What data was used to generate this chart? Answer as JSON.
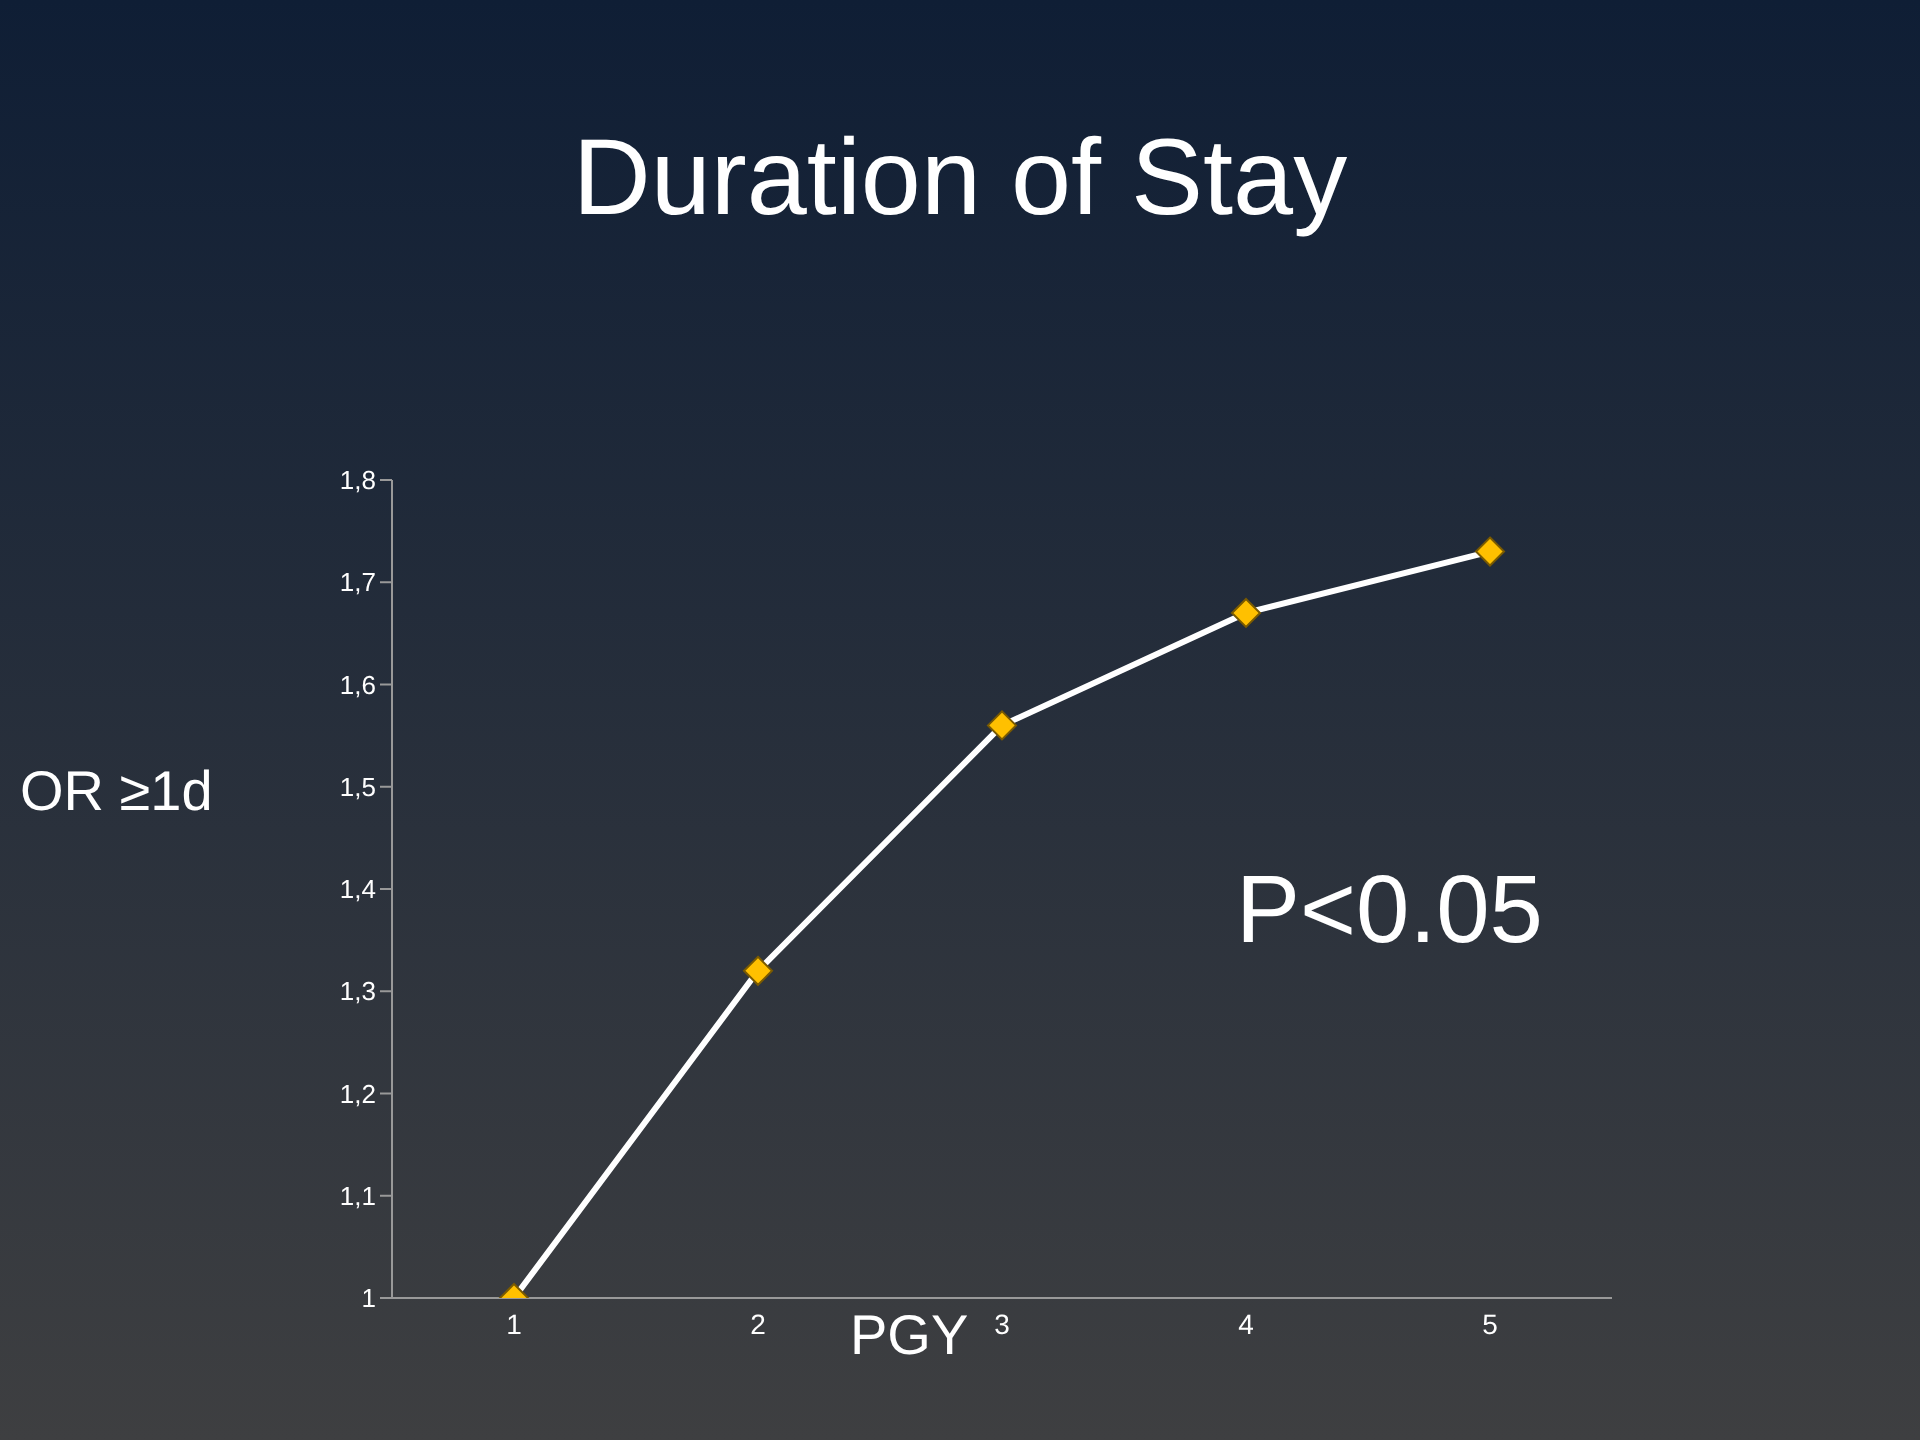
{
  "chart_data": {
    "type": "line",
    "title": "Duration of Stay",
    "xlabel": "PGY",
    "ylabel": "OR ≥1d",
    "categories": [
      "1",
      "2",
      "3",
      "4",
      "5"
    ],
    "series": [
      {
        "color": "#ffffff",
        "values": [
          1.0,
          1.32,
          1.56,
          1.67,
          1.73
        ]
      }
    ],
    "ylim": [
      1,
      1.8
    ],
    "yticks": [
      {
        "value": 1,
        "label": "1"
      },
      {
        "value": 1.1,
        "label": "1,1"
      },
      {
        "value": 1.2,
        "label": "1,2"
      },
      {
        "value": 1.3,
        "label": "1,3"
      },
      {
        "value": 1.4,
        "label": "1,4"
      },
      {
        "value": 1.5,
        "label": "1,5"
      },
      {
        "value": 1.6,
        "label": "1,6"
      },
      {
        "value": 1.7,
        "label": "1,7"
      },
      {
        "value": 1.8,
        "label": "1,8"
      }
    ],
    "marker": "diamond",
    "line_style": "solid",
    "grid": false,
    "legend": false,
    "annotations": [
      "P<0.05"
    ]
  }
}
